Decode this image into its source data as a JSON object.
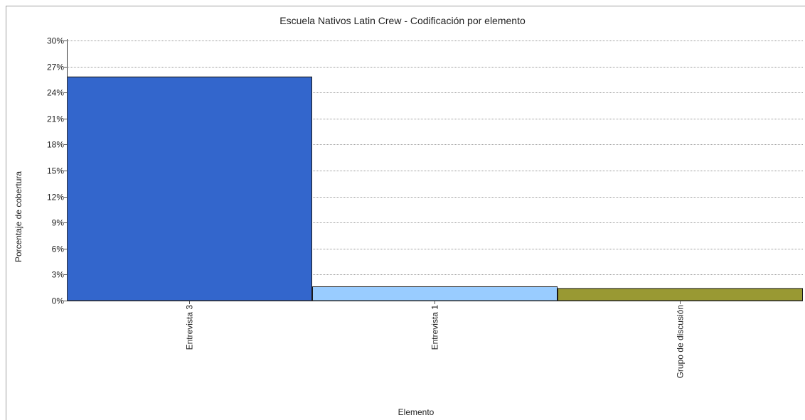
{
  "chart_data": {
    "type": "bar",
    "title": "Escuela Nativos Latin Crew - Codificación por elemento",
    "xlabel": "Elemento",
    "ylabel": "Porcentaje de cobertura",
    "categories": [
      "Entrevista 3",
      "Entrevista 1",
      "Grupo de discusión"
    ],
    "values": [
      25.8,
      1.6,
      1.4
    ],
    "colors": [
      "#3366cc",
      "#99ccff",
      "#999933"
    ],
    "ylim": [
      0,
      30
    ],
    "yticks": [
      0,
      3,
      6,
      9,
      12,
      15,
      18,
      21,
      24,
      27,
      30
    ],
    "ytick_labels": [
      "0%",
      "3%",
      "6%",
      "9%",
      "12%",
      "15%",
      "18%",
      "21%",
      "24%",
      "27%",
      "30%"
    ],
    "grid": true,
    "legend": "none"
  }
}
